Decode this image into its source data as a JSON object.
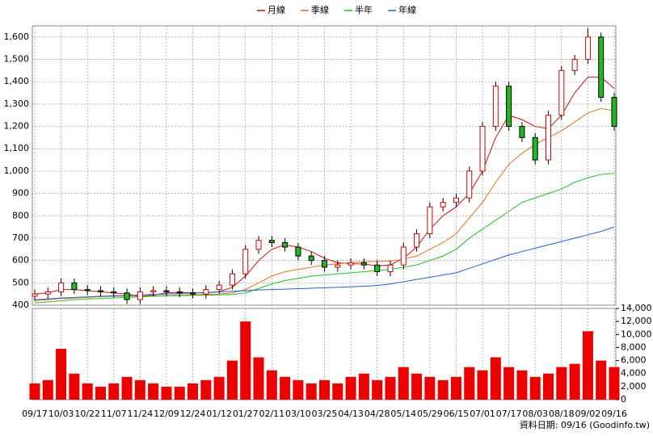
{
  "chart_data": {
    "type": "candlestick",
    "categories": [
      "09/17",
      null,
      "10/03",
      null,
      "10/22",
      null,
      "11/07",
      null,
      "11/24",
      null,
      "12/09",
      null,
      "12/24",
      null,
      "01/12",
      null,
      "01/27",
      null,
      "02/11",
      null,
      "03/10",
      null,
      "03/25",
      null,
      "04/13",
      null,
      "04/28",
      null,
      "05/14",
      null,
      "05/29",
      null,
      "06/15",
      null,
      "07/01",
      null,
      "07/17",
      null,
      "08/03",
      null,
      "08/18",
      null,
      "09/02",
      null,
      "09/16"
    ],
    "open": [
      440,
      450,
      460,
      500,
      470,
      465,
      460,
      455,
      425,
      460,
      465,
      460,
      455,
      450,
      470,
      490,
      540,
      650,
      690,
      680,
      660,
      620,
      600,
      570,
      580,
      590,
      580,
      550,
      580,
      660,
      720,
      840,
      860,
      880,
      1000,
      1200,
      1380,
      1200,
      1150,
      1050,
      1250,
      1450,
      1500,
      1600,
      1330
    ],
    "high": [
      470,
      480,
      520,
      520,
      490,
      485,
      480,
      475,
      480,
      485,
      485,
      480,
      475,
      490,
      510,
      560,
      670,
      710,
      710,
      700,
      680,
      640,
      620,
      600,
      610,
      610,
      600,
      600,
      680,
      740,
      860,
      880,
      900,
      1020,
      1220,
      1400,
      1400,
      1220,
      1170,
      1270,
      1470,
      1520,
      1640,
      1620,
      1350
    ],
    "low": [
      420,
      430,
      440,
      450,
      445,
      440,
      435,
      405,
      405,
      440,
      440,
      435,
      430,
      430,
      450,
      470,
      520,
      630,
      660,
      640,
      600,
      580,
      550,
      550,
      560,
      560,
      530,
      530,
      560,
      640,
      700,
      820,
      840,
      860,
      980,
      1180,
      1180,
      1130,
      1030,
      1030,
      1230,
      1430,
      1480,
      1310,
      1180
    ],
    "close": [
      450,
      460,
      500,
      470,
      465,
      460,
      455,
      425,
      460,
      465,
      460,
      455,
      450,
      470,
      490,
      540,
      650,
      690,
      680,
      660,
      620,
      600,
      570,
      580,
      590,
      580,
      550,
      580,
      660,
      720,
      840,
      860,
      880,
      1000,
      1200,
      1380,
      1200,
      1150,
      1050,
      1250,
      1450,
      1500,
      1600,
      1330,
      1200
    ],
    "up_color": "#d00000",
    "down_color": "#22b822",
    "series": [
      {
        "name": "月線",
        "color": "#d01010",
        "values": [
          450,
          455,
          470,
          470,
          465,
          460,
          455,
          450,
          440,
          445,
          455,
          458,
          455,
          455,
          460,
          480,
          530,
          600,
          650,
          670,
          660,
          640,
          610,
          590,
          585,
          585,
          575,
          580,
          610,
          660,
          740,
          800,
          840,
          900,
          1000,
          1150,
          1250,
          1230,
          1200,
          1190,
          1250,
          1350,
          1420,
          1420,
          1370
        ]
      },
      {
        "name": "季線",
        "color": "#e87020",
        "values": [
          420,
          425,
          430,
          432,
          435,
          438,
          440,
          440,
          440,
          441,
          443,
          445,
          447,
          448,
          450,
          455,
          470,
          500,
          530,
          550,
          560,
          570,
          580,
          585,
          590,
          595,
          595,
          598,
          605,
          620,
          650,
          680,
          720,
          790,
          860,
          950,
          1030,
          1080,
          1120,
          1150,
          1180,
          1220,
          1260,
          1280,
          1270
        ]
      },
      {
        "name": "半年",
        "color": "#20c020",
        "values": [
          410,
          415,
          420,
          425,
          428,
          430,
          432,
          435,
          437,
          440,
          442,
          443,
          444,
          445,
          446,
          448,
          455,
          475,
          495,
          510,
          520,
          530,
          535,
          540,
          545,
          550,
          555,
          560,
          570,
          580,
          600,
          620,
          650,
          700,
          740,
          780,
          820,
          860,
          880,
          900,
          920,
          950,
          970,
          985,
          990
        ]
      },
      {
        "name": "年線",
        "color": "#2060d0",
        "values": [
          425,
          428,
          432,
          435,
          437,
          440,
          442,
          444,
          446,
          448,
          450,
          452,
          455,
          457,
          460,
          462,
          465,
          468,
          470,
          472,
          474,
          476,
          478,
          480,
          482,
          485,
          488,
          495,
          505,
          515,
          525,
          535,
          545,
          565,
          585,
          605,
          625,
          640,
          655,
          670,
          685,
          700,
          715,
          730,
          750
        ]
      }
    ],
    "ylim": [
      400,
      1650
    ],
    "yticks": [
      400,
      500,
      600,
      700,
      800,
      900,
      {
        "value": 1000,
        "label": "1,000"
      },
      {
        "value": 1100,
        "label": "1,100"
      },
      {
        "value": 1200,
        "label": "1,200"
      },
      {
        "value": 1300,
        "label": "1,300"
      },
      {
        "value": 1400,
        "label": "1,400"
      },
      {
        "value": 1500,
        "label": "1,500"
      },
      {
        "value": 1600,
        "label": "1,600"
      }
    ],
    "grid": true,
    "volume": {
      "color": "#ee0000",
      "values": [
        2500,
        3000,
        7800,
        4000,
        2500,
        2000,
        2500,
        3500,
        3000,
        2500,
        2000,
        2000,
        2500,
        3000,
        3500,
        6000,
        12000,
        6500,
        4500,
        3500,
        3000,
        2500,
        3000,
        2500,
        3500,
        4000,
        3000,
        3500,
        5000,
        4000,
        3500,
        3000,
        3500,
        5000,
        4500,
        6500,
        5000,
        4500,
        3500,
        4000,
        5000,
        5500,
        10500,
        6000,
        5000
      ],
      "ylim": [
        0,
        14000
      ],
      "yticks": [
        0,
        {
          "value": 2000,
          "label": "2,000"
        },
        {
          "value": 4000,
          "label": "4,000"
        },
        {
          "value": 6000,
          "label": "6,000"
        },
        {
          "value": 8000,
          "label": "8,000"
        },
        {
          "value": 10000,
          "label": "10,000"
        },
        {
          "value": 12000,
          "label": "12,000"
        },
        {
          "value": 14000,
          "label": "14,000"
        }
      ]
    }
  },
  "footer": "資料日期: 09/16  (Goodinfo.tw)"
}
